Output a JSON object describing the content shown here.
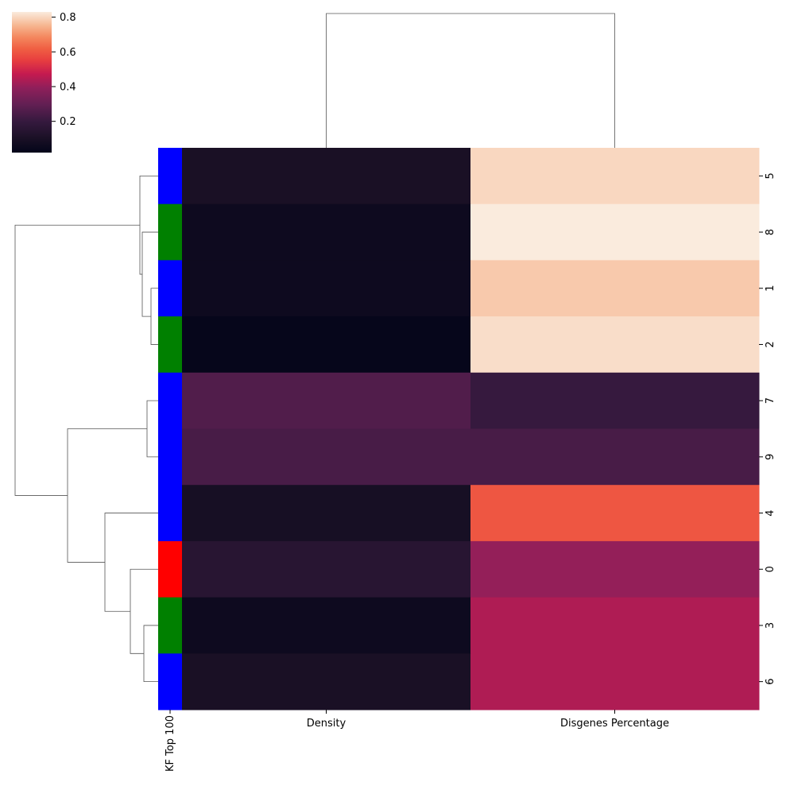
{
  "chart_data": {
    "type": "heatmap",
    "title": "",
    "columns": [
      "Density",
      "Disgenes Percentage"
    ],
    "rows": [
      "5",
      "8",
      "1",
      "2",
      "7",
      "9",
      "4",
      "0",
      "3",
      "6"
    ],
    "values": [
      [
        0.1,
        0.8
      ],
      [
        0.06,
        0.85
      ],
      [
        0.06,
        0.78
      ],
      [
        0.03,
        0.81
      ],
      [
        0.26,
        0.2
      ],
      [
        0.24,
        0.24
      ],
      [
        0.09,
        0.6
      ],
      [
        0.15,
        0.4
      ],
      [
        0.06,
        0.44
      ],
      [
        0.1,
        0.44
      ]
    ],
    "row_colors_label": "KF Top 100",
    "row_colors": [
      "#0000ff",
      "#008000",
      "#0000ff",
      "#008000",
      "#0000ff",
      "#0000ff",
      "#0000ff",
      "#ff0000",
      "#008000",
      "#0000ff"
    ],
    "colorbar": {
      "range": [
        0.02,
        0.83
      ],
      "ticks": [
        "0.2",
        "0.4",
        "0.6",
        "0.8"
      ],
      "tick_values": [
        0.2,
        0.4,
        0.6,
        0.8
      ],
      "colormap": "rocket"
    },
    "row_dendrogram": true,
    "col_dendrogram": true
  }
}
